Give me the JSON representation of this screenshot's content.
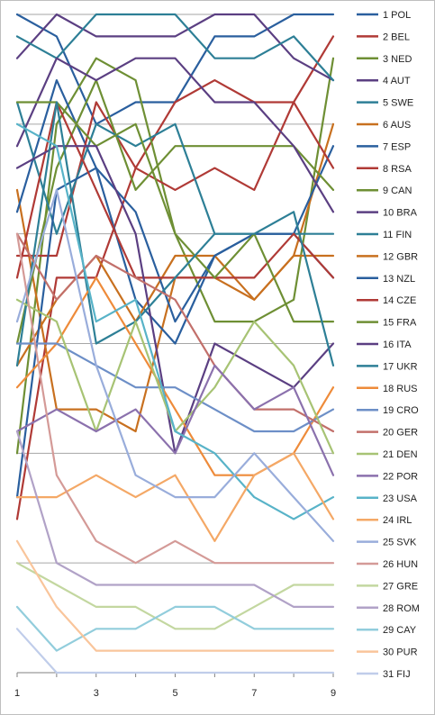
{
  "chart_data": {
    "type": "line",
    "title": "",
    "xlabel": "",
    "ylabel": "",
    "x": [
      1,
      2,
      3,
      4,
      5,
      6,
      7,
      8,
      9
    ],
    "x_tick_labels": [
      "1",
      "3",
      "5",
      "7",
      "9"
    ],
    "y_range": [
      1,
      31
    ],
    "y_inverted": true,
    "grid": "horizontal",
    "legend_position": "right",
    "series": [
      {
        "name": "1 POL",
        "color": "#2a5f9e",
        "values": [
          1,
          2,
          6,
          5,
          5,
          2,
          2,
          1,
          1
        ]
      },
      {
        "name": "2 BEL",
        "color": "#b03a36",
        "values": [
          24,
          13,
          13,
          8,
          5,
          4,
          5,
          5,
          2
        ]
      },
      {
        "name": "3 NED",
        "color": "#6e8f34",
        "values": [
          21,
          6,
          3,
          4,
          11,
          15,
          15,
          14,
          3
        ]
      },
      {
        "name": "4 AUT",
        "color": "#5b3f82",
        "values": [
          3,
          1,
          2,
          2,
          2,
          1,
          1,
          3,
          4
        ]
      },
      {
        "name": "5 SWE",
        "color": "#2d7f96",
        "values": [
          2,
          3,
          1,
          1,
          1,
          3,
          3,
          2,
          4
        ]
      },
      {
        "name": "6 AUS",
        "color": "#c8701f",
        "values": [
          9,
          19,
          19,
          20,
          13,
          13,
          14,
          12,
          6
        ]
      },
      {
        "name": "7 ESP",
        "color": "#2a5f9e",
        "values": [
          10,
          4,
          8,
          14,
          16,
          12,
          11,
          11,
          7
        ]
      },
      {
        "name": "8 RSA",
        "color": "#b03a36",
        "values": [
          12,
          12,
          5,
          8,
          9,
          8,
          9,
          5,
          8
        ]
      },
      {
        "name": "9 CAN",
        "color": "#6e8f34",
        "values": [
          16,
          8,
          4,
          9,
          7,
          7,
          7,
          7,
          9
        ]
      },
      {
        "name": "10 BRA",
        "color": "#5b3f82",
        "values": [
          7,
          3,
          4,
          3,
          3,
          5,
          5,
          7,
          10
        ]
      },
      {
        "name": "11 FIN",
        "color": "#2d7f96",
        "values": [
          5,
          11,
          6,
          7,
          6,
          11,
          11,
          11,
          11
        ]
      },
      {
        "name": "12 GBR",
        "color": "#c8701f",
        "values": [
          17,
          14,
          12,
          15,
          12,
          12,
          14,
          12,
          12
        ]
      },
      {
        "name": "13 NZL",
        "color": "#2a5f9e",
        "values": [
          23,
          9,
          8,
          10,
          15,
          12,
          11,
          11,
          13
        ]
      },
      {
        "name": "14 CZE",
        "color": "#b03a36",
        "values": [
          13,
          5,
          9,
          13,
          13,
          13,
          13,
          11,
          13
        ]
      },
      {
        "name": "15 FRA",
        "color": "#6e8f34",
        "values": [
          5,
          5,
          7,
          6,
          11,
          13,
          11,
          15,
          15
        ]
      },
      {
        "name": "16 ITA",
        "color": "#5b3f82",
        "values": [
          8,
          7,
          7,
          11,
          21,
          16,
          17,
          18,
          16
        ]
      },
      {
        "name": "17 UKR",
        "color": "#2d7f96",
        "values": [
          17,
          5,
          16,
          15,
          13,
          11,
          11,
          10,
          17
        ]
      },
      {
        "name": "18 RUS",
        "color": "#ee8b3a",
        "values": [
          18,
          16,
          13,
          16,
          19,
          22,
          22,
          21,
          18
        ]
      },
      {
        "name": "19 CRO",
        "color": "#6d8fc7",
        "values": [
          16,
          16,
          17,
          18,
          18,
          19,
          20,
          20,
          19
        ]
      },
      {
        "name": "20 GER",
        "color": "#c2706b",
        "values": [
          11,
          14,
          12,
          13,
          14,
          17,
          19,
          19,
          20
        ]
      },
      {
        "name": "21 DEN",
        "color": "#a7c374",
        "values": [
          14,
          15,
          20,
          15,
          20,
          18,
          15,
          17,
          21
        ]
      },
      {
        "name": "22 POR",
        "color": "#8b71ad",
        "values": [
          20,
          19,
          20,
          19,
          21,
          17,
          19,
          18,
          22
        ]
      },
      {
        "name": "23 USA",
        "color": "#58b3c8",
        "values": [
          6,
          7,
          15,
          14,
          20,
          21,
          23,
          24,
          23
        ]
      },
      {
        "name": "24 IRL",
        "color": "#f4a866",
        "values": [
          23,
          23,
          22,
          23,
          22,
          25,
          22,
          21,
          24
        ]
      },
      {
        "name": "25 SVK",
        "color": "#99addb",
        "values": [
          15,
          9,
          17,
          22,
          23,
          23,
          21,
          23,
          25
        ]
      },
      {
        "name": "26 HUN",
        "color": "#d49a97",
        "values": [
          11,
          22,
          25,
          26,
          25,
          26,
          26,
          26,
          26
        ]
      },
      {
        "name": "27 GRE",
        "color": "#c3d7a0",
        "values": [
          26,
          27,
          28,
          28,
          29,
          29,
          28,
          27,
          27
        ]
      },
      {
        "name": "28 ROM",
        "color": "#b1a2c7",
        "values": [
          20,
          26,
          27,
          27,
          27,
          27,
          27,
          28,
          28
        ]
      },
      {
        "name": "29 CAY",
        "color": "#92cddc",
        "values": [
          28,
          30,
          29,
          29,
          28,
          28,
          29,
          29,
          29
        ]
      },
      {
        "name": "30 PUR",
        "color": "#f9c59b",
        "values": [
          25,
          28,
          30,
          30,
          30,
          30,
          30,
          30,
          30
        ]
      },
      {
        "name": "31 FIJ",
        "color": "#c0cdea",
        "values": [
          29,
          31,
          31,
          31,
          31,
          31,
          31,
          31,
          31
        ]
      }
    ]
  }
}
